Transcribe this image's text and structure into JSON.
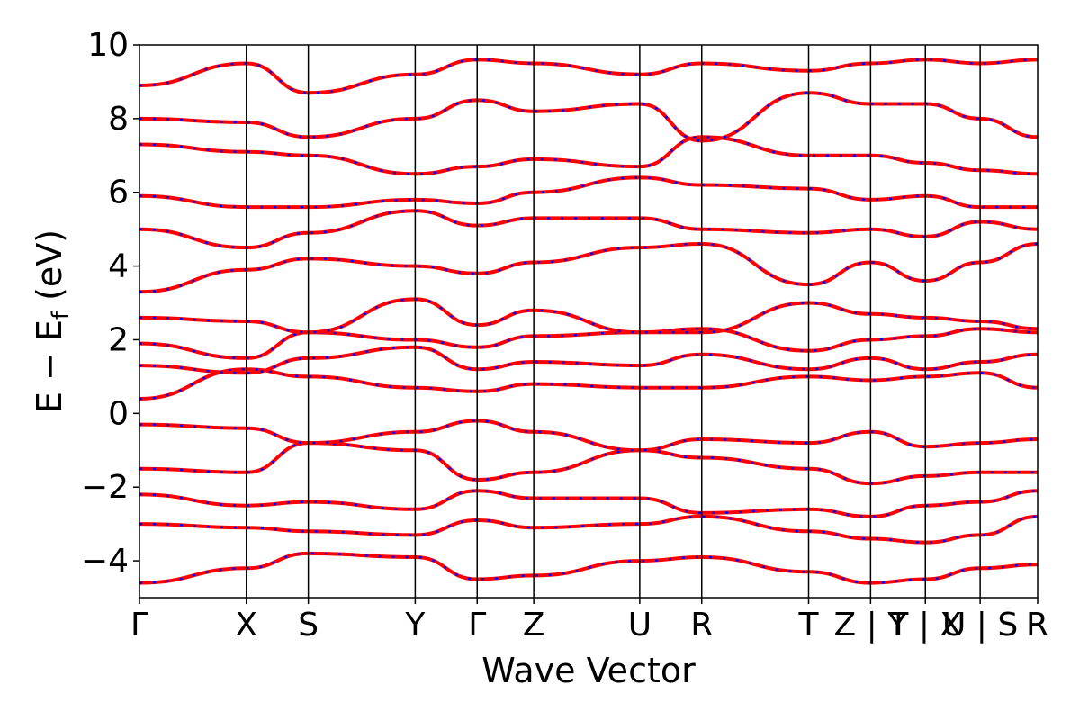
{
  "chart_data": {
    "type": "line",
    "xlabel": "Wave Vector",
    "ylabel": "E − E",
    "ylabel_sub": "f",
    "ylabel_unit": " (eV)",
    "ylim": [
      -5,
      10
    ],
    "yticks": [
      -4,
      -2,
      0,
      2,
      4,
      6,
      8,
      10
    ],
    "ytick_labels": [
      "−4",
      "−2",
      "0",
      "2",
      "4",
      "6",
      "8",
      "10"
    ],
    "xlim": [
      0,
      1
    ],
    "kpoint_positions": [
      0,
      0.119,
      0.188,
      0.307,
      0.376,
      0.439,
      0.557,
      0.626,
      0.745,
      0.814,
      0.875,
      0.936,
      1.0
    ],
    "kpoint_labels": [
      "Γ",
      "X",
      "S",
      "Y",
      "Γ",
      "Z",
      "U",
      "R",
      "T",
      "Z | Y",
      "T | X",
      "U | S",
      "R"
    ],
    "xtick_labels_drawn": [
      {
        "x": 0,
        "text": "Γ"
      },
      {
        "x": 0.119,
        "text": "X"
      },
      {
        "x": 0.188,
        "text": "S"
      },
      {
        "x": 0.307,
        "text": "Y"
      },
      {
        "x": 0.376,
        "text": "Γ"
      },
      {
        "x": 0.439,
        "text": "Z"
      },
      {
        "x": 0.557,
        "text": "U"
      },
      {
        "x": 0.626,
        "text": "R"
      },
      {
        "x": 0.745,
        "text": "T"
      },
      {
        "x": 0.814,
        "text": "Z | Y"
      },
      {
        "x": 0.875,
        "text": "T | X"
      },
      {
        "x": 0.936,
        "text": "U | S"
      },
      {
        "x": 1.0,
        "text": "R"
      }
    ],
    "series": [
      {
        "values": [
          -4.6,
          -4.2,
          -3.8,
          -3.9,
          -4.5,
          -4.4,
          -4.0,
          -3.9,
          -4.3,
          -4.6,
          -4.5,
          -4.2,
          -4.1
        ]
      },
      {
        "values": [
          -3.0,
          -3.1,
          -3.2,
          -3.3,
          -2.9,
          -3.1,
          -3.0,
          -2.8,
          -3.2,
          -3.4,
          -3.5,
          -3.3,
          -2.8
        ]
      },
      {
        "values": [
          -2.2,
          -2.5,
          -2.4,
          -2.6,
          -2.1,
          -2.3,
          -2.3,
          -2.7,
          -2.6,
          -2.8,
          -2.5,
          -2.4,
          -2.1
        ]
      },
      {
        "values": [
          -1.5,
          -1.6,
          -0.8,
          -1.0,
          -1.8,
          -1.6,
          -1.0,
          -1.2,
          -1.5,
          -1.9,
          -1.7,
          -1.6,
          -1.6
        ]
      },
      {
        "values": [
          -0.3,
          -0.4,
          -0.8,
          -0.5,
          -0.2,
          -0.5,
          -1.0,
          -0.7,
          -0.8,
          -0.5,
          -0.9,
          -0.8,
          -0.7
        ]
      },
      {
        "values": [
          0.4,
          1.2,
          1.0,
          0.7,
          0.6,
          0.8,
          0.7,
          0.7,
          1.0,
          0.9,
          1.0,
          1.1,
          0.7
        ]
      },
      {
        "values": [
          1.3,
          1.1,
          1.5,
          1.8,
          1.2,
          1.4,
          1.3,
          1.6,
          1.2,
          1.5,
          1.2,
          1.4,
          1.6
        ]
      },
      {
        "values": [
          1.9,
          1.5,
          2.2,
          2.0,
          1.8,
          2.1,
          2.2,
          2.3,
          1.7,
          2.0,
          2.1,
          2.3,
          2.2
        ]
      },
      {
        "values": [
          2.6,
          2.5,
          2.2,
          3.1,
          2.4,
          2.8,
          2.2,
          2.2,
          3.0,
          2.7,
          2.6,
          2.5,
          2.3
        ]
      },
      {
        "values": [
          3.3,
          3.9,
          4.2,
          4.0,
          3.8,
          4.1,
          4.5,
          4.6,
          3.5,
          4.1,
          3.6,
          4.1,
          4.6
        ]
      },
      {
        "values": [
          5.0,
          4.5,
          4.9,
          5.5,
          5.1,
          5.3,
          5.3,
          5.0,
          4.9,
          5.0,
          4.8,
          5.2,
          5.0
        ]
      },
      {
        "values": [
          5.9,
          5.6,
          5.6,
          5.8,
          5.7,
          6.0,
          6.4,
          6.2,
          6.1,
          5.8,
          5.9,
          5.6,
          5.6
        ]
      },
      {
        "values": [
          7.3,
          7.1,
          7.0,
          6.5,
          6.7,
          6.9,
          6.7,
          7.5,
          7.0,
          7.0,
          6.8,
          6.6,
          6.5
        ]
      },
      {
        "values": [
          8.0,
          7.9,
          7.5,
          8.0,
          8.5,
          8.2,
          8.4,
          7.4,
          8.7,
          8.4,
          8.4,
          8.0,
          7.5
        ]
      },
      {
        "values": [
          8.9,
          9.5,
          8.7,
          9.2,
          9.6,
          9.5,
          9.2,
          9.5,
          9.3,
          9.5,
          9.6,
          9.5,
          9.6
        ]
      }
    ],
    "line_color": "#ff0000",
    "dash_color": "#0000ff",
    "vline_color": "#000000",
    "grid": false
  }
}
